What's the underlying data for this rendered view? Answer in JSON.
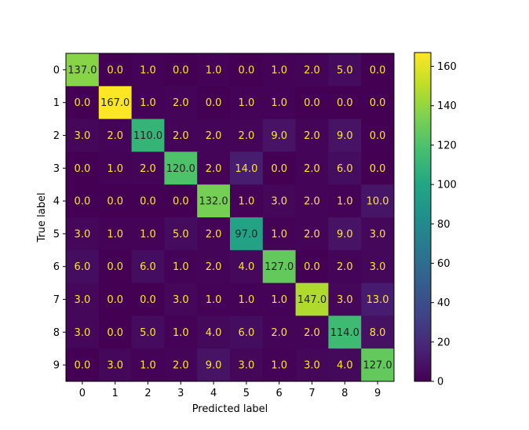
{
  "chart_data": {
    "type": "heatmap",
    "title": "",
    "xlabel": "Predicted label",
    "ylabel": "True label",
    "x_categories": [
      "0",
      "1",
      "2",
      "3",
      "4",
      "5",
      "6",
      "7",
      "8",
      "9"
    ],
    "y_categories": [
      "0",
      "1",
      "2",
      "3",
      "4",
      "5",
      "6",
      "7",
      "8",
      "9"
    ],
    "matrix": [
      [
        137.0,
        0.0,
        1.0,
        0.0,
        1.0,
        0.0,
        1.0,
        2.0,
        5.0,
        0.0
      ],
      [
        0.0,
        167.0,
        1.0,
        2.0,
        0.0,
        1.0,
        1.0,
        0.0,
        0.0,
        0.0
      ],
      [
        3.0,
        2.0,
        110.0,
        2.0,
        2.0,
        2.0,
        9.0,
        2.0,
        9.0,
        0.0
      ],
      [
        0.0,
        1.0,
        2.0,
        120.0,
        2.0,
        14.0,
        0.0,
        2.0,
        6.0,
        0.0
      ],
      [
        0.0,
        0.0,
        0.0,
        0.0,
        132.0,
        1.0,
        3.0,
        2.0,
        1.0,
        10.0
      ],
      [
        3.0,
        1.0,
        1.0,
        5.0,
        2.0,
        97.0,
        1.0,
        2.0,
        9.0,
        3.0
      ],
      [
        6.0,
        0.0,
        6.0,
        1.0,
        2.0,
        4.0,
        127.0,
        0.0,
        2.0,
        3.0
      ],
      [
        3.0,
        0.0,
        0.0,
        3.0,
        1.0,
        1.0,
        1.0,
        147.0,
        3.0,
        13.0
      ],
      [
        3.0,
        0.0,
        5.0,
        1.0,
        4.0,
        6.0,
        2.0,
        2.0,
        114.0,
        8.0
      ],
      [
        0.0,
        3.0,
        1.0,
        2.0,
        9.0,
        3.0,
        1.0,
        3.0,
        4.0,
        127.0
      ]
    ],
    "colormap": "viridis",
    "vmin": 0,
    "vmax": 167,
    "colorbar_ticks": [
      "0",
      "20",
      "40",
      "60",
      "80",
      "100",
      "120",
      "140",
      "160"
    ],
    "label_color_low": "#fde725",
    "label_color_high": "#1f1f1f"
  }
}
